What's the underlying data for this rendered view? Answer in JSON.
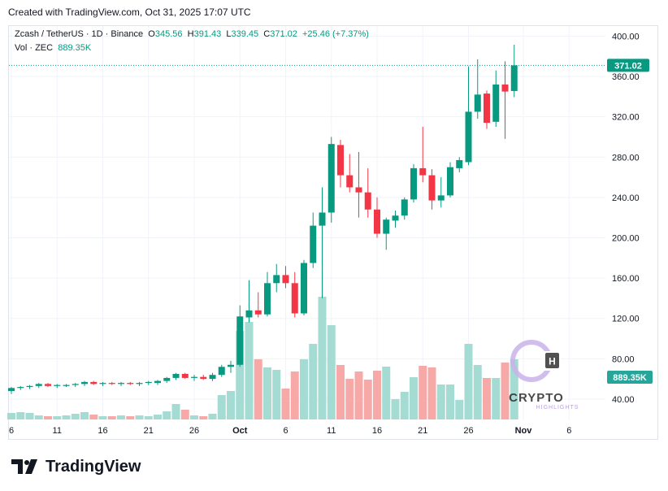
{
  "header": {
    "created_with": "Created with TradingView.com, Oct 31, 2025 17:07 UTC"
  },
  "legend": {
    "symbol": "Zcash / TetherUS · 1D · Binance",
    "o_label": "O",
    "o": "345.56",
    "h_label": "H",
    "h": "391.43",
    "l_label": "L",
    "l": "339.45",
    "c_label": "C",
    "c": "371.02",
    "change": "+25.46 (+7.37%)",
    "vol_label": "Vol · ZEC",
    "vol": "889.35K"
  },
  "price_tag": "371.02",
  "volume_tag": "889.35K",
  "watermark": {
    "word": "CRYPTO",
    "sub": "HIGHLIGHTS",
    "letter": "H"
  },
  "brand": "TradingView",
  "colors": {
    "up": "#089981",
    "down": "#f23645",
    "up_vol": "#a4dbd2",
    "down_vol": "#f7a9a7",
    "grid": "#f0f3fa"
  },
  "chart_data": {
    "type": "candlestick",
    "interval": "1D",
    "y_ticks": [
      "40.00",
      "80.00",
      "120.00",
      "160.00",
      "200.00",
      "240.00",
      "280.00",
      "320.00",
      "360.00",
      "400.00"
    ],
    "x_ticks": [
      {
        "label": "6",
        "index": 0
      },
      {
        "label": "11",
        "index": 5
      },
      {
        "label": "16",
        "index": 10
      },
      {
        "label": "21",
        "index": 15
      },
      {
        "label": "26",
        "index": 20
      },
      {
        "label": "Oct",
        "index": 25
      },
      {
        "label": "6",
        "index": 30
      },
      {
        "label": "11",
        "index": 35
      },
      {
        "label": "16",
        "index": 40
      },
      {
        "label": "21",
        "index": 45
      },
      {
        "label": "26",
        "index": 50
      },
      {
        "label": "Nov",
        "index": 56
      },
      {
        "label": "6",
        "index": 61
      }
    ],
    "price_range": [
      19,
      410
    ],
    "candles": [
      {
        "o": 48,
        "h": 52,
        "l": 45,
        "c": 51
      },
      {
        "o": 51,
        "h": 53,
        "l": 49,
        "c": 52
      },
      {
        "o": 52,
        "h": 54,
        "l": 50,
        "c": 53
      },
      {
        "o": 53,
        "h": 56,
        "l": 51,
        "c": 55
      },
      {
        "o": 55,
        "h": 56,
        "l": 52,
        "c": 53
      },
      {
        "o": 53,
        "h": 55,
        "l": 51,
        "c": 54
      },
      {
        "o": 53,
        "h": 55,
        "l": 52,
        "c": 54
      },
      {
        "o": 54,
        "h": 56,
        "l": 52,
        "c": 55
      },
      {
        "o": 55,
        "h": 58,
        "l": 53,
        "c": 57
      },
      {
        "o": 57,
        "h": 58,
        "l": 54,
        "c": 55
      },
      {
        "o": 55,
        "h": 57,
        "l": 53,
        "c": 56
      },
      {
        "o": 56,
        "h": 57,
        "l": 54,
        "c": 55
      },
      {
        "o": 55,
        "h": 57,
        "l": 53,
        "c": 56
      },
      {
        "o": 56,
        "h": 57,
        "l": 54,
        "c": 55
      },
      {
        "o": 55,
        "h": 57,
        "l": 53,
        "c": 56
      },
      {
        "o": 56,
        "h": 58,
        "l": 54,
        "c": 57
      },
      {
        "o": 56,
        "h": 59,
        "l": 54,
        "c": 58
      },
      {
        "o": 58,
        "h": 62,
        "l": 56,
        "c": 61
      },
      {
        "o": 61,
        "h": 66,
        "l": 59,
        "c": 65
      },
      {
        "o": 65,
        "h": 66,
        "l": 60,
        "c": 61
      },
      {
        "o": 61,
        "h": 64,
        "l": 58,
        "c": 62
      },
      {
        "o": 62,
        "h": 64,
        "l": 59,
        "c": 60
      },
      {
        "o": 60,
        "h": 66,
        "l": 58,
        "c": 64
      },
      {
        "o": 64,
        "h": 74,
        "l": 62,
        "c": 72
      },
      {
        "o": 72,
        "h": 78,
        "l": 66,
        "c": 74
      },
      {
        "o": 74,
        "h": 133,
        "l": 72,
        "c": 122
      },
      {
        "o": 121,
        "h": 158,
        "l": 116,
        "c": 128
      },
      {
        "o": 128,
        "h": 146,
        "l": 121,
        "c": 124
      },
      {
        "o": 124,
        "h": 166,
        "l": 122,
        "c": 155
      },
      {
        "o": 155,
        "h": 174,
        "l": 146,
        "c": 163
      },
      {
        "o": 163,
        "h": 172,
        "l": 150,
        "c": 155
      },
      {
        "o": 155,
        "h": 166,
        "l": 121,
        "c": 125
      },
      {
        "o": 125,
        "h": 178,
        "l": 123,
        "c": 175
      },
      {
        "o": 175,
        "h": 225,
        "l": 170,
        "c": 212
      },
      {
        "o": 212,
        "h": 250,
        "l": 140,
        "c": 225
      },
      {
        "o": 225,
        "h": 300,
        "l": 215,
        "c": 293
      },
      {
        "o": 292,
        "h": 297,
        "l": 250,
        "c": 262
      },
      {
        "o": 262,
        "h": 283,
        "l": 245,
        "c": 250
      },
      {
        "o": 250,
        "h": 285,
        "l": 220,
        "c": 245
      },
      {
        "o": 245,
        "h": 269,
        "l": 220,
        "c": 228
      },
      {
        "o": 228,
        "h": 240,
        "l": 200,
        "c": 204
      },
      {
        "o": 204,
        "h": 220,
        "l": 188,
        "c": 218
      },
      {
        "o": 217,
        "h": 227,
        "l": 210,
        "c": 222
      },
      {
        "o": 222,
        "h": 240,
        "l": 218,
        "c": 238
      },
      {
        "o": 238,
        "h": 273,
        "l": 235,
        "c": 269
      },
      {
        "o": 269,
        "h": 310,
        "l": 255,
        "c": 262
      },
      {
        "o": 262,
        "h": 268,
        "l": 228,
        "c": 237
      },
      {
        "o": 237,
        "h": 260,
        "l": 230,
        "c": 242
      },
      {
        "o": 242,
        "h": 275,
        "l": 240,
        "c": 270
      },
      {
        "o": 269,
        "h": 280,
        "l": 265,
        "c": 277
      },
      {
        "o": 275,
        "h": 370,
        "l": 272,
        "c": 325
      },
      {
        "o": 325,
        "h": 377,
        "l": 318,
        "c": 342
      },
      {
        "o": 343,
        "h": 346,
        "l": 308,
        "c": 314
      },
      {
        "o": 315,
        "h": 366,
        "l": 310,
        "c": 352
      },
      {
        "o": 352,
        "h": 375,
        "l": 298,
        "c": 345
      },
      {
        "o": 345.56,
        "h": 391.43,
        "l": 339.45,
        "c": 371.02
      }
    ],
    "volume": [
      {
        "v": 8,
        "up": true
      },
      {
        "v": 9,
        "up": true
      },
      {
        "v": 8,
        "up": true
      },
      {
        "v": 5,
        "up": true
      },
      {
        "v": 4,
        "up": false
      },
      {
        "v": 4,
        "up": true
      },
      {
        "v": 5,
        "up": true
      },
      {
        "v": 7,
        "up": true
      },
      {
        "v": 9,
        "up": true
      },
      {
        "v": 6,
        "up": false
      },
      {
        "v": 4,
        "up": true
      },
      {
        "v": 4,
        "up": false
      },
      {
        "v": 5,
        "up": true
      },
      {
        "v": 4,
        "up": false
      },
      {
        "v": 5,
        "up": true
      },
      {
        "v": 4,
        "up": true
      },
      {
        "v": 6,
        "up": true
      },
      {
        "v": 10,
        "up": true
      },
      {
        "v": 19,
        "up": true
      },
      {
        "v": 12,
        "up": false
      },
      {
        "v": 5,
        "up": true
      },
      {
        "v": 4,
        "up": false
      },
      {
        "v": 7,
        "up": true
      },
      {
        "v": 30,
        "up": true
      },
      {
        "v": 35,
        "up": true
      },
      {
        "v": 109,
        "up": true
      },
      {
        "v": 120,
        "up": true
      },
      {
        "v": 74,
        "up": false
      },
      {
        "v": 64,
        "up": true
      },
      {
        "v": 61,
        "up": true
      },
      {
        "v": 38,
        "up": false
      },
      {
        "v": 59,
        "up": false
      },
      {
        "v": 74,
        "up": true
      },
      {
        "v": 93,
        "up": true
      },
      {
        "v": 151,
        "up": true
      },
      {
        "v": 116,
        "up": true
      },
      {
        "v": 67,
        "up": false
      },
      {
        "v": 50,
        "up": false
      },
      {
        "v": 59,
        "up": false
      },
      {
        "v": 49,
        "up": false
      },
      {
        "v": 60,
        "up": false
      },
      {
        "v": 65,
        "up": true
      },
      {
        "v": 25,
        "up": true
      },
      {
        "v": 34,
        "up": true
      },
      {
        "v": 52,
        "up": true
      },
      {
        "v": 66,
        "up": false
      },
      {
        "v": 64,
        "up": false
      },
      {
        "v": 43,
        "up": true
      },
      {
        "v": 43,
        "up": true
      },
      {
        "v": 24,
        "up": true
      },
      {
        "v": 93,
        "up": true
      },
      {
        "v": 67,
        "up": true
      },
      {
        "v": 51,
        "up": false
      },
      {
        "v": 51,
        "up": true
      },
      {
        "v": 70,
        "up": false
      },
      {
        "v": 74,
        "up": true
      }
    ],
    "volume_max": 220
  }
}
